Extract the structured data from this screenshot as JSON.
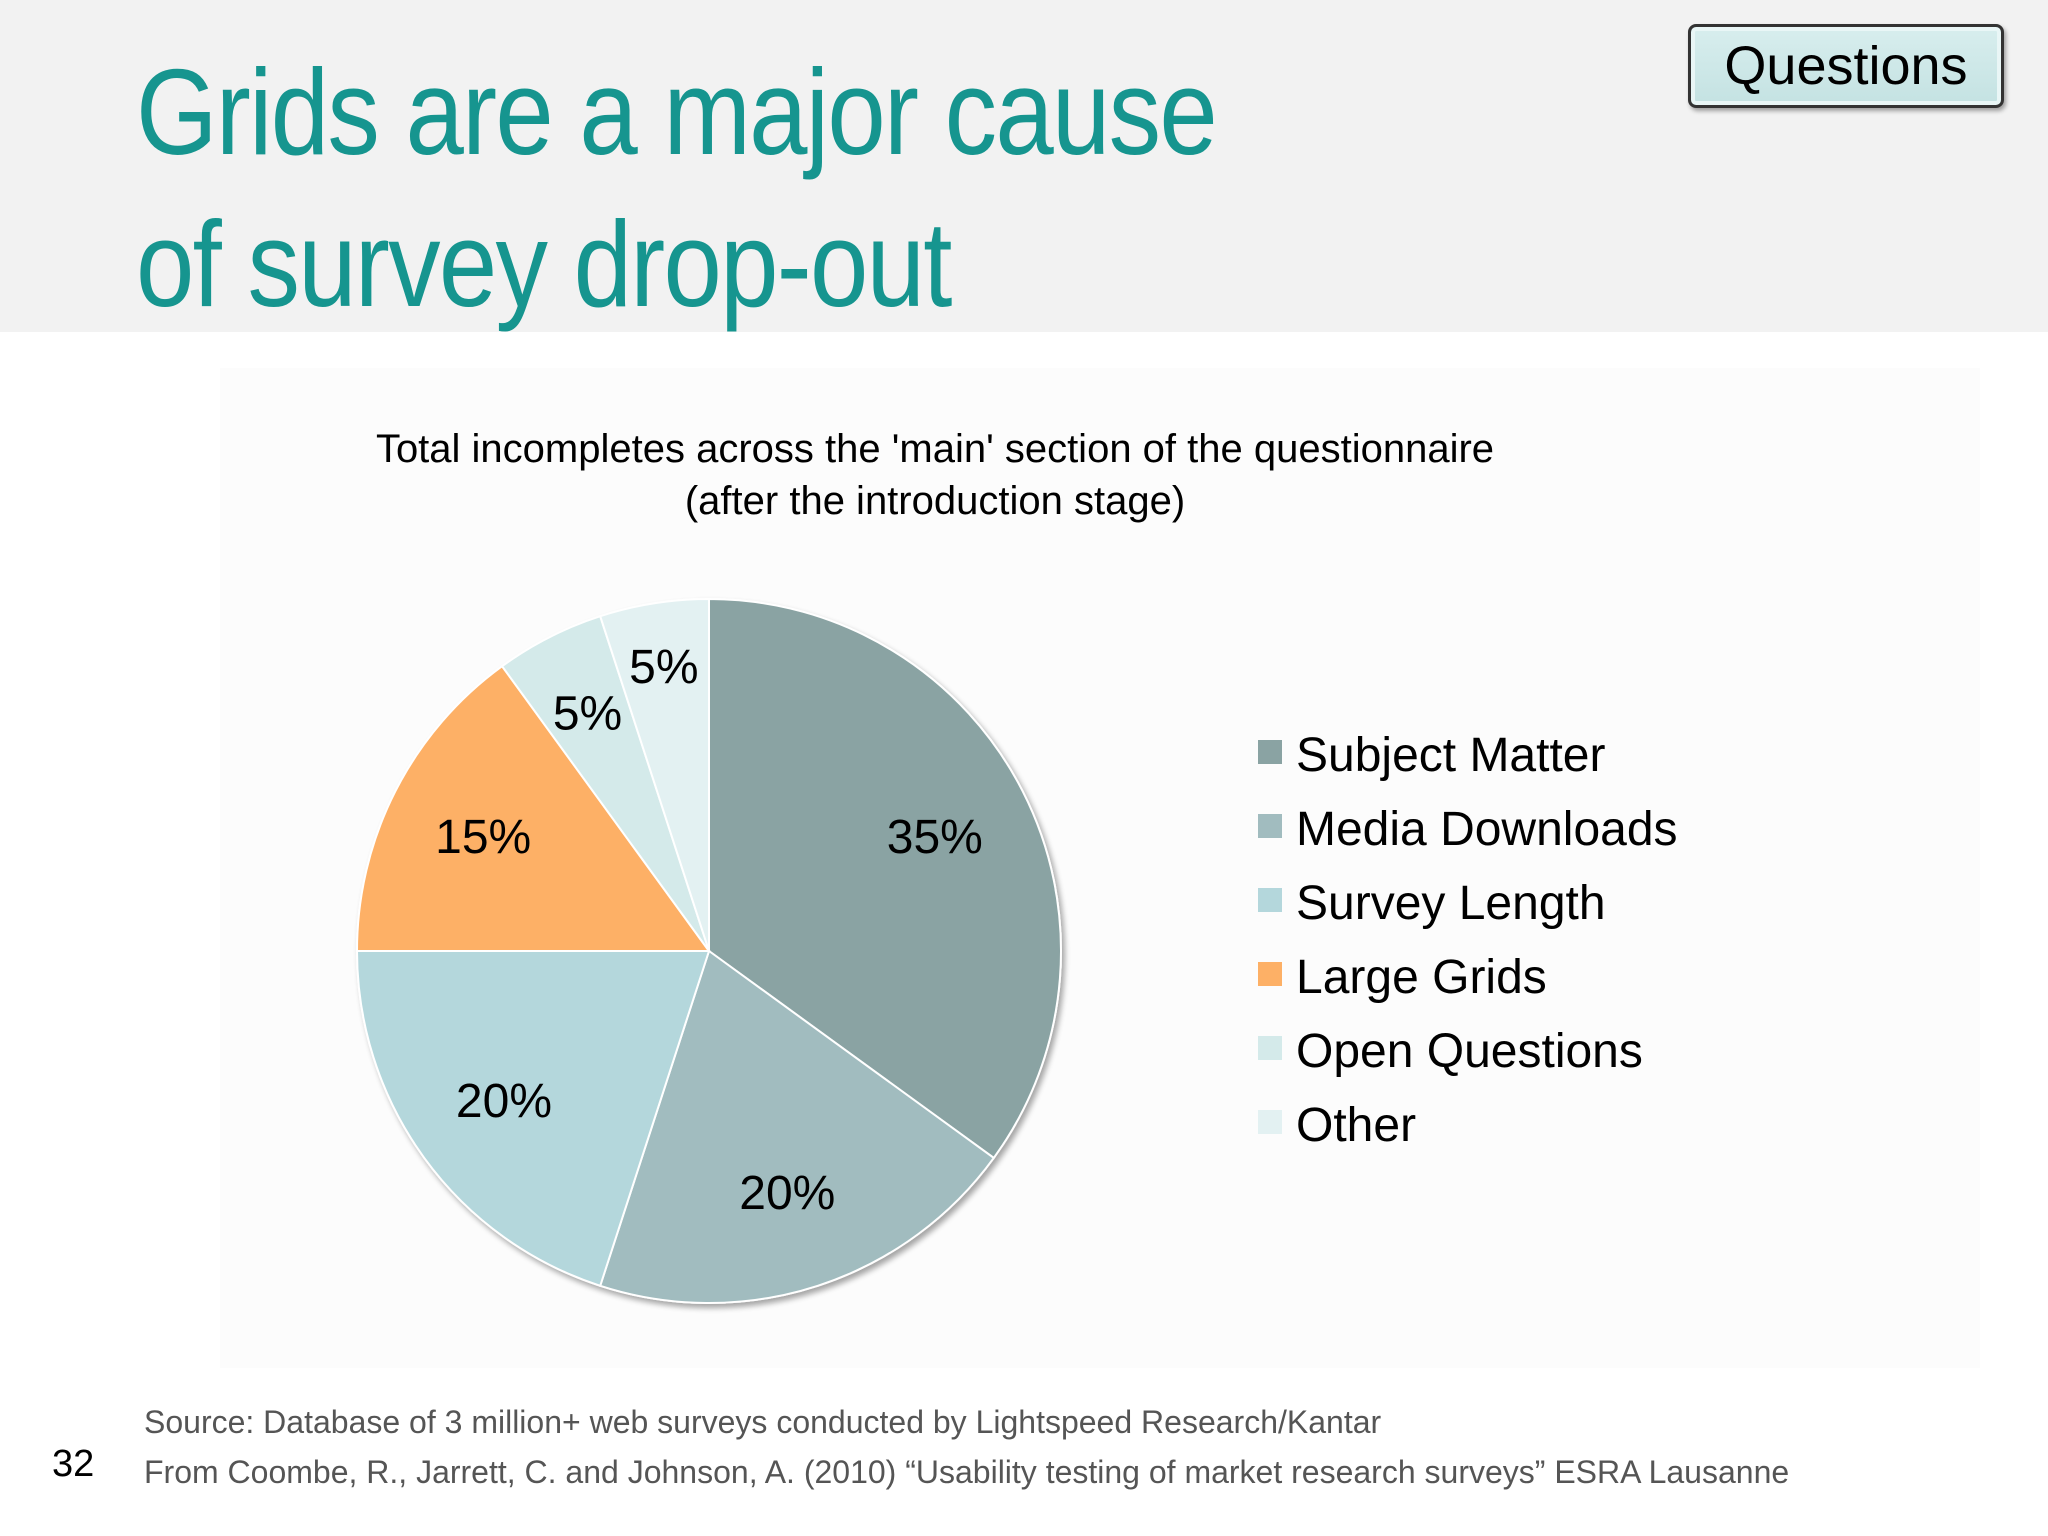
{
  "slide": {
    "title": "Grids are a major cause of survey drop-out",
    "questions_button_label": "Questions",
    "page_number": "32",
    "source_line_1": "Source: Database of 3 million+ web surveys conducted by Lightspeed Research/Kantar",
    "source_line_2": "From Coombe, R., Jarrett, C. and Johnson, A. (2010) “Usability testing of market research surveys” ESRA Lausanne"
  },
  "chart_data": {
    "type": "pie",
    "title": "Total incompletes across the 'main' section of the questionnaire",
    "subtitle": "(after the introduction stage)",
    "legend_position": "right",
    "categories": [
      "Subject Matter",
      "Media Downloads",
      "Survey Length",
      "Large Grids",
      "Open Questions",
      "Other"
    ],
    "values": [
      35,
      20,
      20,
      15,
      5,
      5
    ],
    "labels": [
      "35%",
      "20%",
      "20%",
      "15%",
      "5%",
      "5%"
    ],
    "colors": [
      "#8aa3a3",
      "#a1bcbf",
      "#b4d7dc",
      "#fdb066",
      "#d4eaea",
      "#e3f1f2"
    ],
    "highlight": "Large Grids"
  }
}
